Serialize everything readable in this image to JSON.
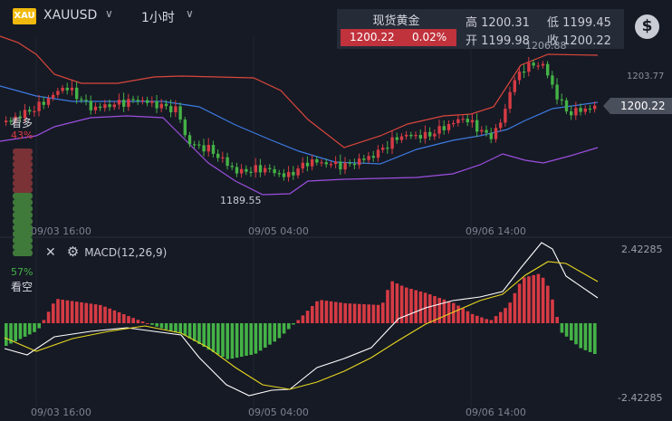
{
  "header": {
    "symbol_badge": "XAU",
    "symbol": "XAUUSD",
    "timeframe": "1小时"
  },
  "quote": {
    "title": "现货黄金",
    "price": "1200.22",
    "change_pct": "0.02%",
    "high_label": "高",
    "high": "1200.31",
    "low_label": "低",
    "low": "1199.45",
    "open_label": "开",
    "open": "1199.98",
    "close_label": "收",
    "close": "1200.22"
  },
  "chart": {
    "high_marker": "1206.88",
    "low_marker": "1189.55",
    "axis_label": "1203.77",
    "last_price_tag": "1200.22",
    "x_labels": [
      "09/03 16:00",
      "09/05 04:00",
      "09/06 14:00"
    ]
  },
  "sentiment": {
    "bull_label": "看多",
    "bull_pct": "43%",
    "bear_pct": "57%",
    "bear_label": "看空"
  },
  "macd": {
    "label": "MACD(12,26,9)",
    "axis_top": "2.42285",
    "axis_bottom": "-2.42285"
  },
  "colors": {
    "up": "#d63b44",
    "down": "#44b246",
    "boll_upper": "#d9473c",
    "boll_mid": "#3d7be0",
    "boll_lower": "#9d4fe0",
    "macd_line": "#ffffff",
    "signal_line": "#e8d820"
  }
}
